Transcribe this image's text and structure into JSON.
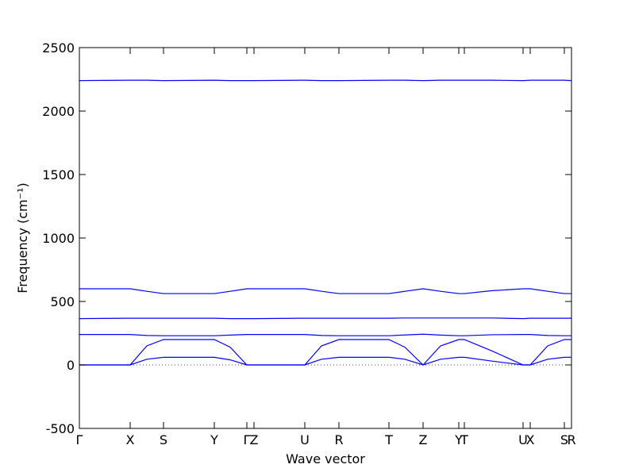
{
  "chart_data": {
    "type": "line",
    "xlabel": "Wave vector",
    "ylabel": "Frequency (cm⁻¹)",
    "x": [
      0,
      64,
      85,
      106,
      170,
      190,
      211,
      220,
      284,
      305,
      327,
      390,
      410,
      433,
      455,
      478,
      485,
      520,
      559,
      568,
      590,
      611,
      620
    ],
    "series": [
      {
        "color": "#0000ff",
        "values": [
          2240,
          2243,
          2243,
          2240,
          2243,
          2240,
          2240,
          2240,
          2243,
          2240,
          2240,
          2243,
          2243,
          2240,
          2243,
          2243,
          2243,
          2243,
          2240,
          2243,
          2243,
          2243,
          2240
        ]
      },
      {
        "color": "#0000ff",
        "values": [
          600,
          600,
          580,
          562,
          562,
          580,
          600,
          600,
          600,
          580,
          562,
          562,
          580,
          600,
          580,
          562,
          562,
          585,
          600,
          600,
          580,
          562,
          562
        ]
      },
      {
        "color": "#0000ff",
        "values": [
          365,
          368,
          368,
          368,
          368,
          365,
          365,
          365,
          368,
          368,
          368,
          368,
          370,
          370,
          370,
          370,
          370,
          370,
          365,
          368,
          368,
          368,
          368
        ]
      },
      {
        "color": "#0000ff",
        "values": [
          240,
          240,
          232,
          230,
          230,
          235,
          240,
          240,
          240,
          232,
          230,
          230,
          236,
          242,
          235,
          230,
          230,
          238,
          240,
          240,
          232,
          230,
          230
        ]
      },
      {
        "color": "#0000ff",
        "values": [
          0,
          0,
          150,
          200,
          200,
          140,
          0,
          0,
          0,
          150,
          200,
          200,
          140,
          0,
          150,
          200,
          200,
          110,
          0,
          0,
          150,
          200,
          200
        ]
      },
      {
        "color": "#0000ff",
        "values": [
          0,
          0,
          45,
          60,
          60,
          40,
          0,
          0,
          0,
          45,
          60,
          60,
          45,
          0,
          45,
          60,
          60,
          30,
          0,
          0,
          45,
          60,
          60
        ]
      }
    ],
    "xlim": [
      0,
      620
    ],
    "xticks": [
      {
        "value": 0,
        "label": "Γ"
      },
      {
        "value": 64,
        "label": "X"
      },
      {
        "value": 106,
        "label": "S"
      },
      {
        "value": 170,
        "label": "Y"
      },
      {
        "value": 211,
        "label": "Γ"
      },
      {
        "value": 220,
        "label": "Z"
      },
      {
        "value": 284,
        "label": "U"
      },
      {
        "value": 327,
        "label": "R"
      },
      {
        "value": 390,
        "label": "T"
      },
      {
        "value": 433,
        "label": "Z"
      },
      {
        "value": 478,
        "label": "Y"
      },
      {
        "value": 485,
        "label": "T"
      },
      {
        "value": 559,
        "label": "U"
      },
      {
        "value": 568,
        "label": "X"
      },
      {
        "value": 611,
        "label": "S"
      },
      {
        "value": 620,
        "label": "R"
      }
    ],
    "ylim": [
      -500,
      2500
    ],
    "yticks": [
      -500,
      0,
      500,
      1000,
      1500,
      2000,
      2500
    ]
  }
}
